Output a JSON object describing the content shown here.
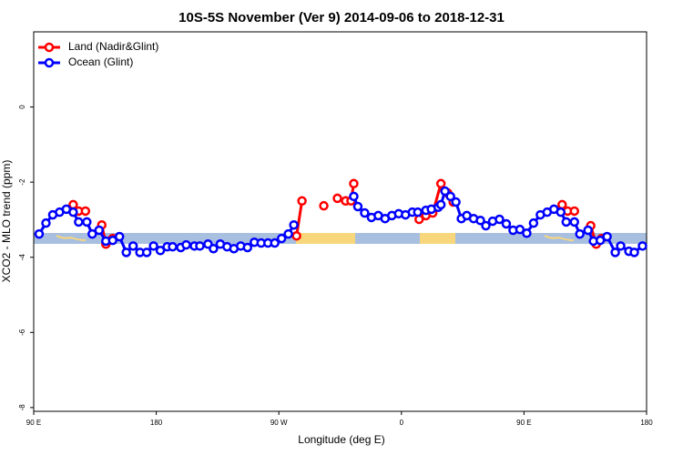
{
  "chart_data": {
    "type": "line",
    "title": "10S-5S November (Ver 9)   2014-09-06 to 2018-12-31",
    "xlabel": "Longitude (deg E)",
    "ylabel": "XCO2 - MLO trend (ppm)",
    "xlim": [
      90,
      540
    ],
    "xticks": [
      {
        "value": 90,
        "label": "90 E"
      },
      180,
      {
        "value": 270,
        "label": "90 W"
      },
      {
        "value": 360,
        "label": "0"
      },
      {
        "value": 450,
        "label": "90 E"
      },
      {
        "value": 540,
        "label": "180"
      }
    ],
    "ylim": [
      -8.1,
      2
    ],
    "yticks": [
      0,
      -2,
      -4,
      -6,
      -8
    ],
    "legend": "upper left",
    "series": [
      {
        "name": "Land (Nadir&Glint)",
        "color": "#ff0000",
        "x": [
          119,
          123,
          128,
          null,
          140,
          143,
          148,
          null,
          283,
          287,
          null,
          303,
          null,
          313,
          319,
          323,
          325,
          null,
          373,
          378,
          383,
          389,
          394,
          398,
          null,
          478,
          482,
          487,
          null,
          499,
          503,
          507
        ],
        "values": [
          -2.6,
          -2.77,
          -2.77,
          null,
          -3.14,
          -3.65,
          -3.5,
          null,
          -3.43,
          -2.5,
          null,
          -2.63,
          null,
          -2.43,
          -2.5,
          -2.5,
          -2.04,
          null,
          -2.99,
          -2.89,
          -2.82,
          -2.04,
          -2.29,
          -2.53,
          null,
          -2.6,
          -2.77,
          -2.77,
          null,
          -3.16,
          -3.65,
          -3.5
        ]
      },
      {
        "name": "Ocean (Glint)",
        "color": "#0000ff",
        "x": [
          94,
          99,
          104,
          109,
          114,
          119,
          123,
          129,
          133,
          138,
          143,
          148,
          153,
          158,
          163,
          168,
          173,
          178,
          183,
          188,
          192,
          198,
          202,
          208,
          212,
          218,
          222,
          227,
          232,
          237,
          242,
          247,
          252,
          257,
          262,
          267,
          272,
          277,
          281,
          null,
          325,
          328,
          333,
          338,
          343,
          348,
          353,
          358,
          363,
          368,
          372,
          378,
          382,
          387,
          389,
          392,
          396,
          400,
          404,
          408,
          413,
          418,
          422,
          427,
          432,
          437,
          442,
          447,
          452,
          457,
          462,
          467,
          472,
          477,
          481,
          487,
          491,
          497,
          501,
          506,
          511,
          517,
          521,
          527,
          531,
          537
        ],
        "values": [
          -3.38,
          -3.09,
          -2.87,
          -2.8,
          -2.72,
          -2.8,
          -3.06,
          -3.06,
          -3.38,
          -3.28,
          -3.57,
          -3.55,
          -3.45,
          -3.87,
          -3.7,
          -3.87,
          -3.87,
          -3.7,
          -3.82,
          -3.72,
          -3.72,
          -3.74,
          -3.67,
          -3.7,
          -3.7,
          -3.65,
          -3.77,
          -3.65,
          -3.72,
          -3.77,
          -3.7,
          -3.74,
          -3.6,
          -3.62,
          -3.62,
          -3.62,
          -3.5,
          -3.38,
          -3.14,
          null,
          -2.38,
          -2.65,
          -2.82,
          -2.94,
          -2.89,
          -2.97,
          -2.89,
          -2.84,
          -2.87,
          -2.8,
          -2.8,
          -2.75,
          -2.72,
          -2.67,
          -2.6,
          -2.24,
          -2.38,
          -2.53,
          -2.97,
          -2.89,
          -2.97,
          -3.02,
          -3.16,
          -3.04,
          -2.99,
          -3.11,
          -3.28,
          -3.26,
          -3.36,
          -3.09,
          -2.87,
          -2.8,
          -2.72,
          -2.8,
          -3.06,
          -3.06,
          -3.38,
          -3.28,
          -3.57,
          -3.55,
          -3.45,
          -3.87,
          -3.7,
          -3.84,
          -3.87,
          -3.7
        ]
      }
    ]
  }
}
